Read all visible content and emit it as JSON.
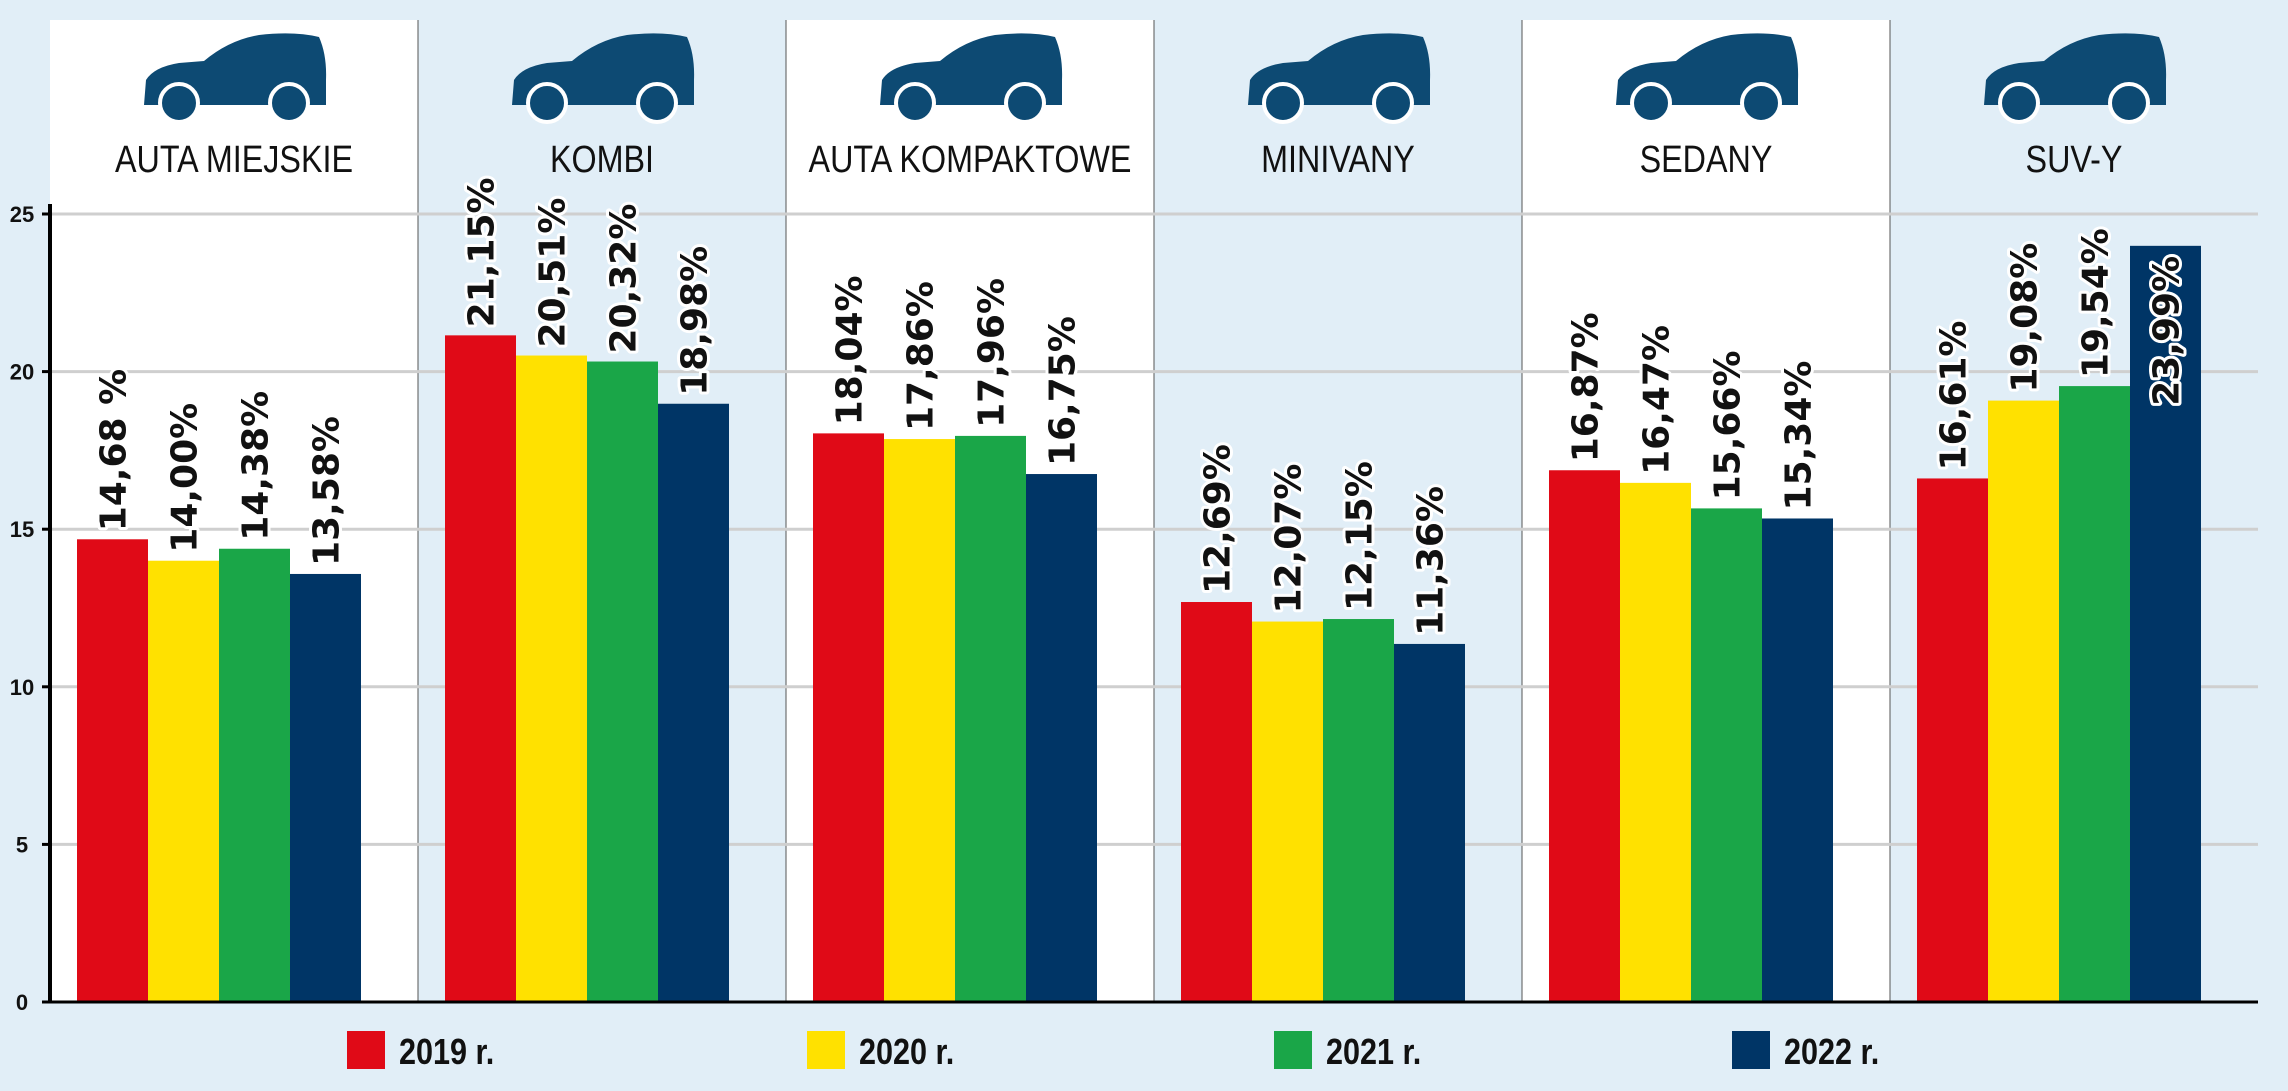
{
  "chart_data": {
    "type": "bar",
    "categories": [
      "AUTA MIEJSKIE",
      "KOMBI",
      "AUTA KOMPAKTOWE",
      "MINIVANY",
      "SEDANY",
      "SUV-Y"
    ],
    "series": [
      {
        "name": "2019 r.",
        "color": "#e00a17",
        "values": [
          14.68,
          21.15,
          18.04,
          12.69,
          16.87,
          16.61
        ],
        "labels": [
          "14,68 %",
          "21,15%",
          "18,04%",
          "12,69%",
          "16,87%",
          "16,61%"
        ]
      },
      {
        "name": "2020 r.",
        "color": "#ffe100",
        "values": [
          14.0,
          20.51,
          17.86,
          12.07,
          16.47,
          19.08
        ],
        "labels": [
          "14,00%",
          "20,51%",
          "17,86%",
          "12,07%",
          "16,47%",
          "19,08%"
        ]
      },
      {
        "name": "2021 r.",
        "color": "#1aa648",
        "values": [
          14.38,
          20.32,
          17.96,
          12.15,
          15.66,
          19.54
        ],
        "labels": [
          "14,38%",
          "20,32%",
          "17,96%",
          "12,15%",
          "15,66%",
          "19,54%"
        ]
      },
      {
        "name": "2022 r.",
        "color": "#003566",
        "values": [
          13.58,
          18.98,
          16.75,
          11.36,
          15.34,
          23.99
        ],
        "labels": [
          "13,58%",
          "18,98%",
          "16,75%",
          "11,36%",
          "15,34%",
          "23,99%"
        ]
      }
    ],
    "yticks": [
      "0",
      "5",
      "10",
      "15",
      "20",
      "25"
    ],
    "ylim": [
      0,
      25
    ],
    "grid": true,
    "legend": "bottom",
    "icon": "car-icon",
    "icon_color": "#0d4a73",
    "panel_colors": [
      "#ffffff",
      "#e1eef7"
    ]
  }
}
